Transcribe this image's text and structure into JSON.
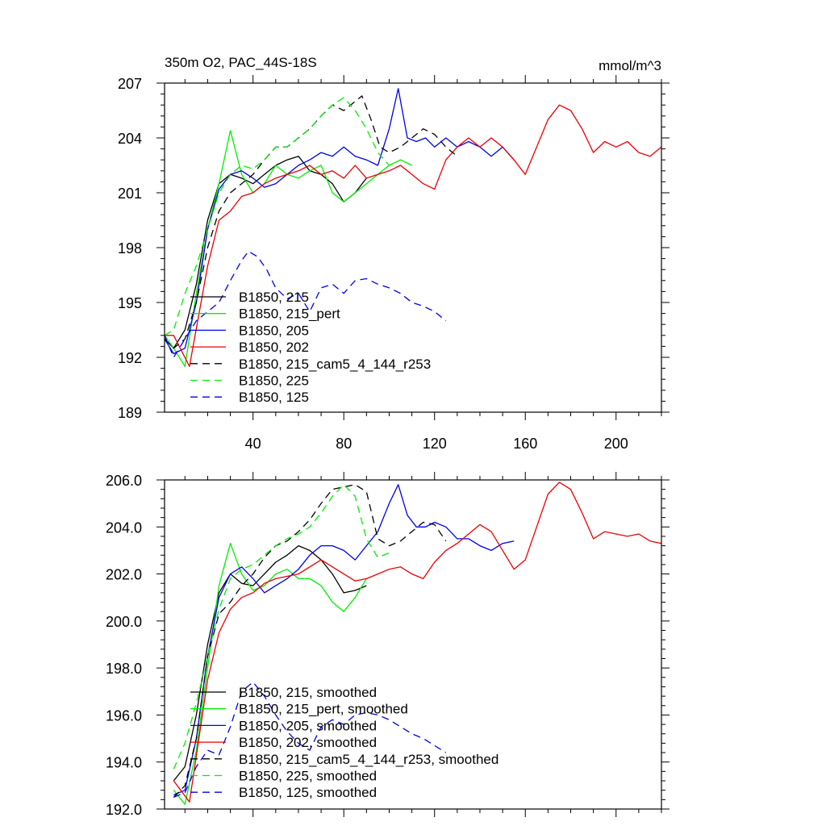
{
  "chart_data": [
    {
      "type": "line",
      "title": "350m O2, PAC_44S-18S",
      "units": "mmol/m^3",
      "xlabel": "",
      "ylabel": "",
      "xlim": [
        1,
        220
      ],
      "ylim": [
        189,
        207
      ],
      "xticks": [
        {
          "value": 40,
          "label": "40"
        },
        {
          "value": 80,
          "label": "80"
        },
        {
          "value": 120,
          "label": "120"
        },
        {
          "value": 160,
          "label": "160"
        },
        {
          "value": 200,
          "label": "200"
        }
      ],
      "yticks": [
        {
          "value": 189,
          "label": "189"
        },
        {
          "value": 192,
          "label": "192"
        },
        {
          "value": 195,
          "label": "195"
        },
        {
          "value": 198,
          "label": "198"
        },
        {
          "value": 201,
          "label": "201"
        },
        {
          "value": 204,
          "label": "204"
        },
        {
          "value": 207,
          "label": "207"
        }
      ],
      "legend_position": "lower-left",
      "series": [
        {
          "name": "B1850, 215",
          "color": "#000000",
          "dash": "solid",
          "x": [
            1,
            5,
            10,
            15,
            20,
            25,
            30,
            35,
            40,
            45,
            50,
            55,
            60,
            65,
            70,
            75,
            80,
            85,
            90
          ],
          "y": [
            193,
            192.5,
            193.5,
            196,
            199.5,
            201.5,
            202,
            201.8,
            201.5,
            202,
            202.5,
            202.8,
            203,
            202.2,
            202,
            201.5,
            200.5,
            201,
            201.8
          ]
        },
        {
          "name": "B1850, 215_pert",
          "color": "#00ee00",
          "dash": "solid",
          "x": [
            1,
            5,
            10,
            15,
            20,
            25,
            30,
            35,
            40,
            45,
            50,
            55,
            60,
            65,
            70,
            75,
            80,
            85,
            90,
            95,
            100,
            105,
            110
          ],
          "y": [
            193.2,
            192.5,
            191.5,
            195.5,
            199,
            201.5,
            204.4,
            202,
            201,
            201.5,
            202.5,
            202,
            201.8,
            202.2,
            202.5,
            201,
            200.5,
            201,
            201.5,
            202,
            202.5,
            202.8,
            202.5
          ]
        },
        {
          "name": "B1850, 205",
          "color": "#0000ee",
          "dash": "solid",
          "x": [
            1,
            5,
            10,
            15,
            20,
            25,
            30,
            35,
            40,
            45,
            50,
            55,
            60,
            65,
            70,
            75,
            80,
            85,
            90,
            95,
            100,
            104,
            108,
            112,
            116,
            120,
            125,
            130,
            135,
            140,
            145,
            150,
            155
          ],
          "y": [
            193,
            192.2,
            192.5,
            195,
            199,
            201.2,
            202,
            202.2,
            201.8,
            201.3,
            201.5,
            202,
            202.5,
            202.8,
            203.2,
            203,
            203.5,
            203,
            202.8,
            202.5,
            204.5,
            206.7,
            204,
            203.8,
            204,
            203.5,
            204,
            203.5,
            203.8,
            203.5,
            203,
            203.5,
            202.8
          ]
        },
        {
          "name": "B1850, 202",
          "color": "#ee0000",
          "dash": "solid",
          "x": [
            1,
            5,
            12,
            20,
            25,
            30,
            35,
            40,
            45,
            50,
            55,
            60,
            65,
            70,
            75,
            80,
            85,
            90,
            95,
            100,
            105,
            110,
            115,
            120,
            125,
            130,
            135,
            140,
            145,
            150,
            155,
            160,
            165,
            170,
            175,
            180,
            185,
            190,
            195,
            200,
            205,
            210,
            215,
            220
          ],
          "y": [
            193.2,
            193.2,
            191.5,
            197,
            199.5,
            200,
            200.8,
            201,
            201.5,
            201.8,
            202,
            202.2,
            202.5,
            202,
            202.2,
            201.8,
            202.5,
            201.8,
            202,
            202.2,
            202.5,
            202,
            201.5,
            201.2,
            202.8,
            203.5,
            204,
            203.5,
            204,
            203.5,
            202.8,
            202,
            203.5,
            205,
            205.8,
            205.5,
            204.5,
            203.2,
            203.8,
            203.5,
            203.8,
            203.2,
            203.0,
            203.5
          ]
        },
        {
          "name": "B1850, 215_cam5_4_144_r253",
          "color": "#000000",
          "dash": "dashed",
          "x": [
            1,
            5,
            10,
            15,
            20,
            25,
            30,
            35,
            40,
            45,
            50,
            55,
            60,
            65,
            70,
            75,
            80,
            85,
            88,
            92,
            96,
            100,
            105,
            110,
            115,
            120,
            125,
            130
          ],
          "y": [
            193,
            192.5,
            193,
            195,
            198,
            200,
            201,
            201.5,
            202,
            202.8,
            203.5,
            203.5,
            204,
            204.5,
            205.2,
            205.8,
            205.5,
            206,
            206.3,
            205,
            203.5,
            203.2,
            203.5,
            204,
            204.5,
            204.2,
            203.5,
            203
          ]
        },
        {
          "name": "B1850, 225",
          "color": "#00ee00",
          "dash": "dashed",
          "x": [
            1,
            5,
            10,
            15,
            20,
            25,
            30,
            35,
            40,
            45,
            50,
            55,
            60,
            65,
            70,
            75,
            80,
            85,
            90,
            95,
            100
          ],
          "y": [
            193.2,
            193.5,
            195.5,
            197,
            199,
            201,
            202,
            202.5,
            202.3,
            202.8,
            203.5,
            203.5,
            204,
            204.5,
            205.2,
            205.8,
            206.2,
            205.5,
            204.5,
            203.2,
            202.5
          ]
        },
        {
          "name": "B1850, 125",
          "color": "#0000ee",
          "dash": "dashed",
          "x": [
            1,
            5,
            10,
            15,
            20,
            25,
            30,
            35,
            38,
            42,
            46,
            50,
            55,
            60,
            65,
            70,
            75,
            80,
            85,
            90,
            95,
            100,
            105,
            110,
            115,
            120,
            125
          ],
          "y": [
            193.2,
            192,
            193,
            194,
            194.5,
            195,
            196.2,
            197.3,
            197.8,
            197.5,
            196.8,
            195.8,
            195.2,
            195.5,
            194.5,
            195.8,
            196,
            195.5,
            196.2,
            196.3,
            196,
            195.8,
            195.5,
            195,
            194.8,
            194.5,
            194
          ]
        }
      ]
    },
    {
      "type": "line",
      "title": "",
      "xlabel": "",
      "ylabel": "",
      "xlim": [
        1,
        220
      ],
      "ylim": [
        192,
        206
      ],
      "xticks": [
        {
          "value": 40,
          "label": ""
        },
        {
          "value": 80,
          "label": ""
        },
        {
          "value": 120,
          "label": ""
        },
        {
          "value": 160,
          "label": ""
        },
        {
          "value": 200,
          "label": ""
        }
      ],
      "yticks": [
        {
          "value": 192,
          "label": "192.0"
        },
        {
          "value": 194,
          "label": "194.0"
        },
        {
          "value": 196,
          "label": "196.0"
        },
        {
          "value": 198,
          "label": "198.0"
        },
        {
          "value": 200,
          "label": "200.0"
        },
        {
          "value": 202,
          "label": "202.0"
        },
        {
          "value": 204,
          "label": "204.0"
        },
        {
          "value": 206,
          "label": "206.0"
        }
      ],
      "legend_position": "lower-left",
      "series": [
        {
          "name": "B1850, 215, smoothed",
          "color": "#000000",
          "dash": "solid",
          "x": [
            5,
            10,
            15,
            20,
            25,
            30,
            35,
            40,
            45,
            50,
            55,
            60,
            65,
            70,
            75,
            80,
            85,
            90
          ],
          "y": [
            193.2,
            193.8,
            196,
            199,
            201.2,
            202,
            201.6,
            201.5,
            202,
            202.5,
            202.8,
            203.2,
            203,
            202.6,
            202,
            201.2,
            201.3,
            201.5
          ]
        },
        {
          "name": "B1850, 215_pert, smoothed",
          "color": "#00ee00",
          "dash": "solid",
          "x": [
            5,
            10,
            15,
            20,
            25,
            30,
            35,
            40,
            45,
            50,
            55,
            60,
            65,
            70,
            75,
            80,
            85,
            90
          ],
          "y": [
            192.8,
            192.2,
            194.5,
            198,
            201.5,
            203.3,
            202,
            201.3,
            201.5,
            202,
            202.2,
            201.8,
            201.8,
            201.5,
            200.8,
            200.4,
            201,
            201.8
          ]
        },
        {
          "name": "B1850, 205, smoothed",
          "color": "#0000ee",
          "dash": "solid",
          "x": [
            5,
            10,
            15,
            20,
            25,
            30,
            35,
            40,
            45,
            50,
            55,
            60,
            65,
            70,
            75,
            80,
            85,
            90,
            95,
            100,
            104,
            108,
            112,
            116,
            120,
            125,
            130,
            135,
            140,
            145,
            150,
            155
          ],
          "y": [
            192.6,
            192.8,
            195,
            198.5,
            201,
            202,
            202.3,
            201.8,
            201.2,
            201.5,
            201.8,
            202.2,
            202.8,
            203.2,
            203.2,
            203,
            202.6,
            203.2,
            203.8,
            205,
            205.8,
            204.5,
            204,
            204,
            204.2,
            204,
            203.5,
            203.5,
            203.2,
            203,
            203.3,
            203.4
          ]
        },
        {
          "name": "B1850, 202, smoothed",
          "color": "#ee0000",
          "dash": "solid",
          "x": [
            5,
            12,
            20,
            25,
            30,
            35,
            40,
            45,
            50,
            55,
            60,
            65,
            70,
            75,
            80,
            85,
            90,
            95,
            100,
            105,
            110,
            115,
            120,
            125,
            130,
            135,
            140,
            145,
            150,
            155,
            160,
            165,
            170,
            175,
            180,
            185,
            190,
            195,
            200,
            205,
            210,
            215,
            220
          ],
          "y": [
            193.2,
            192.3,
            197.5,
            199.5,
            200.5,
            201,
            201.2,
            201.6,
            201.8,
            201.9,
            202,
            202.3,
            202.6,
            202.3,
            202,
            201.7,
            201.8,
            202,
            202.2,
            202.3,
            202,
            201.8,
            202.5,
            203,
            203.3,
            203.7,
            204.1,
            203.8,
            203,
            202.2,
            202.6,
            204,
            205.4,
            205.9,
            205.6,
            204.6,
            203.5,
            203.8,
            203.7,
            203.6,
            203.7,
            203.4,
            203.3
          ]
        },
        {
          "name": "B1850, 215_cam5_4_144_r253, smoothed",
          "color": "#000000",
          "dash": "dashed",
          "x": [
            5,
            10,
            15,
            20,
            25,
            30,
            35,
            40,
            45,
            50,
            55,
            60,
            65,
            70,
            75,
            80,
            85,
            90,
            95,
            100,
            105,
            110,
            115,
            120,
            125
          ],
          "y": [
            192.5,
            193,
            195,
            198.5,
            200.3,
            200.8,
            201.5,
            202,
            202.7,
            203.2,
            203.4,
            203.8,
            204.3,
            205,
            205.6,
            205.7,
            205.8,
            205.5,
            203.5,
            203.2,
            203.4,
            203.8,
            204.2,
            204.1,
            203.4
          ]
        },
        {
          "name": "B1850, 225, smoothed",
          "color": "#00ee00",
          "dash": "dashed",
          "x": [
            5,
            10,
            15,
            20,
            25,
            30,
            35,
            40,
            45,
            50,
            55,
            60,
            65,
            70,
            75,
            80,
            85,
            90,
            95,
            100
          ],
          "y": [
            193.7,
            194.8,
            196.5,
            198.5,
            200.5,
            201.8,
            202.2,
            202.4,
            202.8,
            203.2,
            203.5,
            203.7,
            204,
            204.6,
            205.3,
            205.8,
            205.3,
            203.5,
            202.7,
            202.9
          ]
        },
        {
          "name": "B1850, 125, smoothed",
          "color": "#0000ee",
          "dash": "dashed",
          "x": [
            5,
            10,
            15,
            20,
            25,
            30,
            35,
            40,
            45,
            50,
            55,
            60,
            65,
            70,
            75,
            80,
            85,
            90,
            95,
            100,
            105,
            110,
            115,
            120,
            125
          ],
          "y": [
            192.5,
            192.7,
            193.8,
            194.5,
            194.3,
            195.5,
            197,
            197.4,
            196.8,
            196,
            195.3,
            194.8,
            194.5,
            195.5,
            195.8,
            195.6,
            196,
            196.1,
            196,
            195.8,
            195.5,
            195.2,
            195,
            194.7,
            194.4
          ]
        }
      ]
    }
  ]
}
